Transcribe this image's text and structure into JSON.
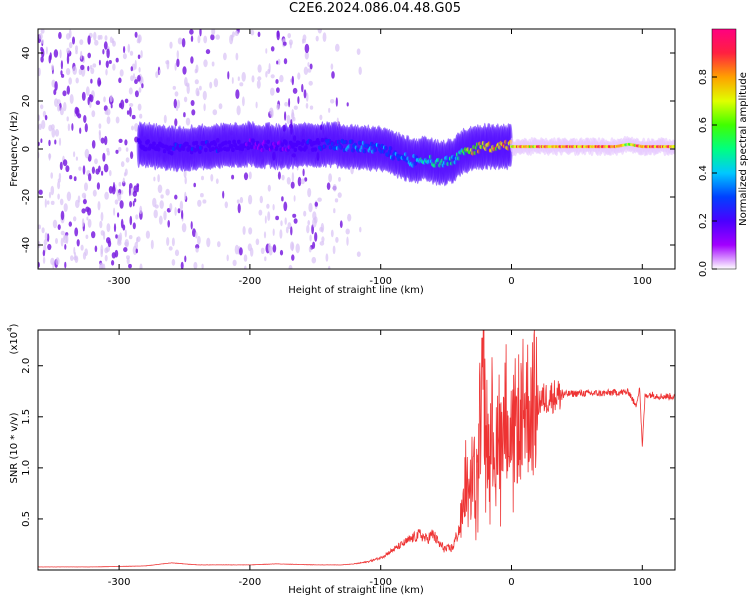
{
  "page": {
    "title": "C2E6.2024.086.04.48.G05"
  },
  "colors": {
    "snr_line": "#ee3333",
    "spectrum_scatter": "#7a1fe0",
    "spectrum_scatter_light": "#d9c2f5",
    "colorbar": [
      "#ffffff",
      "#a200ff",
      "#4a00ff",
      "#0040ff",
      "#00c8ff",
      "#00ff80",
      "#40ff00",
      "#e0ff00",
      "#ffa000",
      "#ff2040",
      "#ff0080"
    ]
  },
  "chart_data": [
    {
      "type": "heatmap",
      "title": "C2E6.2024.086.04.48.G05",
      "xlabel": "Height of straight line (km)",
      "ylabel": "Frequency (Hz)",
      "xlim": [
        -362,
        125
      ],
      "ylim": [
        -50,
        50
      ],
      "x_ticks": [
        -300,
        -200,
        -100,
        0,
        100
      ],
      "x_tick_labels": [
        "-300",
        "-200",
        "-100",
        "0",
        "100"
      ],
      "y_ticks": [
        -40,
        -20,
        0,
        20,
        40
      ],
      "y_tick_labels": [
        "-40",
        "-20",
        "0",
        "20",
        "40"
      ],
      "colorbar": {
        "label": "Normalized spectral amplitude",
        "range": [
          0,
          1
        ],
        "ticks": [
          0.0,
          0.2,
          0.4,
          0.6,
          0.8
        ],
        "tick_labels": [
          "0.0",
          "0.2",
          "0.4",
          "0.6",
          "0.8"
        ]
      },
      "signal_track": {
        "x": [
          -285,
          -260,
          -230,
          -200,
          -180,
          -140,
          -120,
          -100,
          -85,
          -75,
          -65,
          -55,
          -45,
          -38,
          -30,
          -20,
          -10,
          0,
          20,
          40,
          60,
          80,
          90,
          100,
          125
        ],
        "frequency": [
          2,
          0,
          1,
          2,
          1,
          2,
          1,
          0,
          -3,
          -5,
          -4,
          -6,
          -5,
          -1,
          0,
          1,
          1,
          1,
          1,
          1,
          1,
          1,
          2,
          1,
          1
        ],
        "peak_amplitude": [
          0.25,
          0.3,
          0.3,
          0.25,
          0.2,
          0.35,
          0.45,
          0.4,
          0.4,
          0.5,
          0.55,
          0.6,
          0.5,
          0.6,
          0.8,
          0.9,
          0.9,
          0.9,
          0.9,
          0.95,
          0.95,
          0.95,
          0.7,
          0.95,
          0.95
        ]
      },
      "noise_region": {
        "x_range": [
          -362,
          -130
        ],
        "frequency_range": [
          -50,
          50
        ]
      }
    },
    {
      "type": "line",
      "xlabel": "Height of straight line (km)",
      "ylabel": "SNR (10 * v/v)",
      "y_multiplier_label": "(x10",
      "y_multiplier_exponent": "4",
      "y_multiplier_close": ")",
      "xlim": [
        -362,
        125
      ],
      "ylim": [
        0,
        2.35
      ],
      "x_ticks": [
        -300,
        -200,
        -100,
        0,
        100
      ],
      "x_tick_labels": [
        "-300",
        "-200",
        "-100",
        "0",
        "100"
      ],
      "y_ticks": [
        0.5,
        1.0,
        1.5,
        2.0
      ],
      "y_tick_labels": [
        "0.5",
        "1.0",
        "1.5",
        "2.0"
      ],
      "series": [
        {
          "x": [
            -362,
            -320,
            -280,
            -260,
            -240,
            -200,
            -180,
            -150,
            -130,
            -120,
            -110,
            -100,
            -90,
            -80,
            -70,
            -65,
            -60,
            -55,
            -50,
            -45,
            -40,
            -38,
            -35,
            -32,
            -30,
            -27,
            -25,
            -22,
            -21,
            -20,
            -18,
            -15,
            -12,
            -10,
            -7,
            -5,
            -2,
            0,
            5,
            10,
            20,
            30,
            40,
            50,
            60,
            70,
            80,
            90,
            95,
            98,
            100,
            102,
            105,
            110,
            115,
            125
          ],
          "y": [
            0.03,
            0.03,
            0.04,
            0.07,
            0.05,
            0.05,
            0.06,
            0.05,
            0.05,
            0.06,
            0.08,
            0.12,
            0.2,
            0.28,
            0.35,
            0.3,
            0.35,
            0.25,
            0.2,
            0.22,
            0.4,
            0.5,
            0.9,
            0.6,
            1.1,
            0.8,
            1.3,
            2.0,
            2.3,
            1.6,
            1.3,
            1.5,
            1.1,
            1.6,
            1.2,
            1.7,
            1.3,
            1.35,
            1.5,
            1.6,
            1.65,
            1.7,
            1.72,
            1.73,
            1.73,
            1.73,
            1.74,
            1.74,
            1.6,
            1.8,
            1.2,
            1.7,
            1.72,
            1.71,
            1.7,
            1.7
          ]
        }
      ]
    }
  ]
}
